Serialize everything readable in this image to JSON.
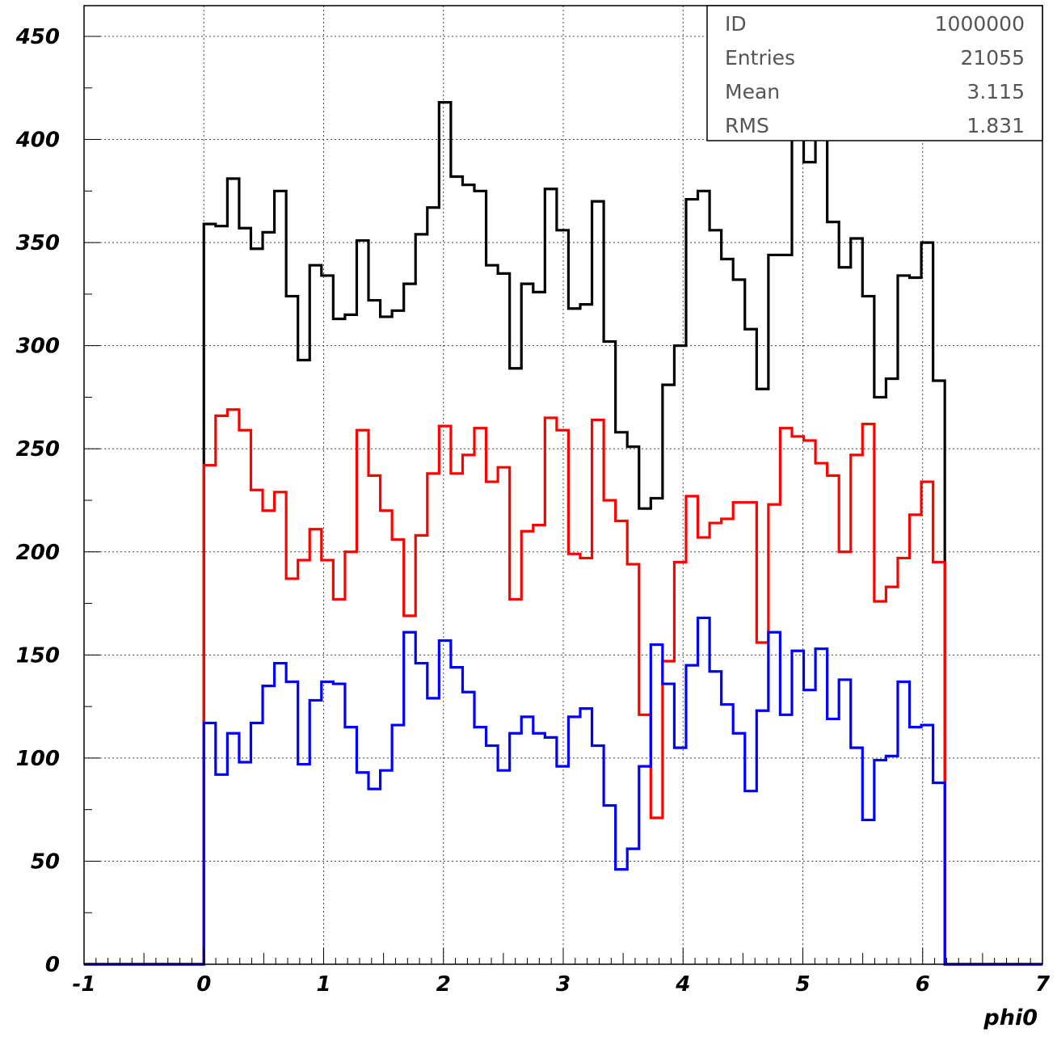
{
  "chart_data": {
    "type": "histogram",
    "xlabel": "phi0",
    "xlim": [
      -1,
      7
    ],
    "ylim": [
      0,
      450
    ],
    "xticks": [
      -1,
      0,
      1,
      2,
      3,
      4,
      5,
      6,
      7
    ],
    "yticks": [
      0,
      50,
      100,
      150,
      200,
      250,
      300,
      350,
      400,
      450
    ],
    "grid": true,
    "bin_edges_range": [
      0,
      6.2832
    ],
    "bins": 64,
    "stats_box": {
      "position": "top-right",
      "rows": [
        {
          "label": "ID",
          "value": "1000000"
        },
        {
          "label": "Entries",
          "value": "21055"
        },
        {
          "label": "Mean",
          "value": "3.115"
        },
        {
          "label": "RMS",
          "value": "1.831"
        }
      ]
    },
    "series": [
      {
        "color": "#000000",
        "values": [
          359,
          358,
          381,
          357,
          347,
          355,
          375,
          324,
          293,
          339,
          334,
          313,
          315,
          351,
          322,
          314,
          317,
          330,
          354,
          367,
          418,
          382,
          378,
          375,
          339,
          335,
          289,
          330,
          326,
          376,
          356,
          318,
          320,
          370,
          302,
          258,
          251,
          221,
          226,
          281,
          300,
          371,
          375,
          356,
          342,
          332,
          308,
          279,
          344,
          344,
          410,
          389,
          407,
          360,
          338,
          352,
          324,
          275,
          284,
          334,
          333,
          350,
          283,
          0
        ]
      },
      {
        "color": "#ff0000",
        "values": [
          242,
          266,
          269,
          259,
          230,
          220,
          229,
          187,
          196,
          211,
          196,
          177,
          200,
          259,
          237,
          220,
          206,
          169,
          208,
          238,
          261,
          238,
          247,
          260,
          234,
          241,
          177,
          210,
          213,
          265,
          259,
          199,
          197,
          264,
          225,
          215,
          194,
          121,
          71,
          147,
          195,
          227,
          207,
          214,
          216,
          224,
          224,
          156,
          223,
          260,
          256,
          254,
          243,
          237,
          200,
          247,
          262,
          176,
          183,
          197,
          218,
          234,
          195,
          0
        ]
      },
      {
        "color": "#0000ff",
        "values": [
          117,
          92,
          112,
          98,
          117,
          135,
          146,
          137,
          97,
          128,
          137,
          136,
          115,
          93,
          85,
          94,
          116,
          161,
          146,
          129,
          157,
          144,
          132,
          115,
          106,
          94,
          112,
          120,
          112,
          110,
          96,
          120,
          124,
          106,
          77,
          46,
          56,
          96,
          155,
          136,
          105,
          145,
          168,
          142,
          126,
          112,
          84,
          123,
          161,
          121,
          152,
          133,
          153,
          119,
          138,
          105,
          70,
          99,
          101,
          137,
          115,
          116,
          88,
          0
        ]
      }
    ]
  }
}
